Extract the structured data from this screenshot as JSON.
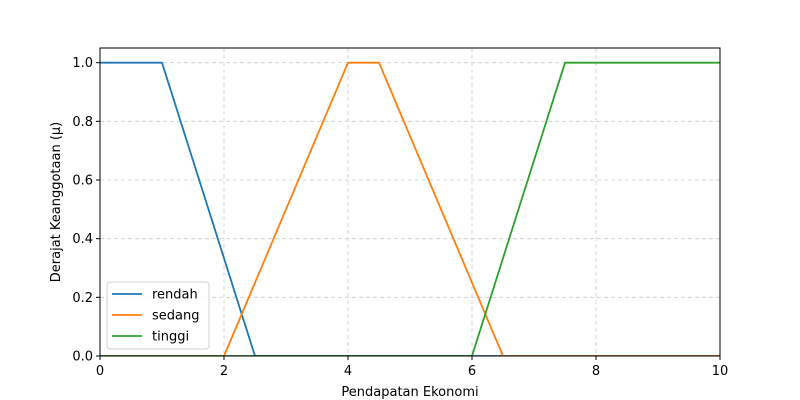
{
  "chart_data": {
    "type": "line",
    "title": "",
    "xlabel": "Pendapatan Ekonomi",
    "ylabel": "Derajat Keanggotaan (μ)",
    "xlim": [
      0,
      10
    ],
    "ylim": [
      0,
      1.05
    ],
    "xticks": [
      0,
      2,
      4,
      6,
      8,
      10
    ],
    "yticks": [
      0.0,
      0.2,
      0.4,
      0.6,
      0.8,
      1.0
    ],
    "xtick_labels": [
      "0",
      "2",
      "4",
      "6",
      "8",
      "10"
    ],
    "ytick_labels": [
      "0.0",
      "0.2",
      "0.4",
      "0.6",
      "0.8",
      "1.0"
    ],
    "grid": true,
    "legend_position": "lower-left",
    "series": [
      {
        "name": "rendah",
        "color": "#1f77b4",
        "x": [
          0,
          1,
          2.5,
          10
        ],
        "y": [
          1,
          1,
          0,
          0
        ]
      },
      {
        "name": "sedang",
        "color": "#ff7f0e",
        "x": [
          0,
          2,
          4,
          4.5,
          6.5,
          10
        ],
        "y": [
          0,
          0,
          1,
          1,
          0,
          0
        ]
      },
      {
        "name": "tinggi",
        "color": "#2ca02c",
        "x": [
          0,
          6,
          7.5,
          10
        ],
        "y": [
          0,
          0,
          1,
          1
        ]
      }
    ]
  }
}
